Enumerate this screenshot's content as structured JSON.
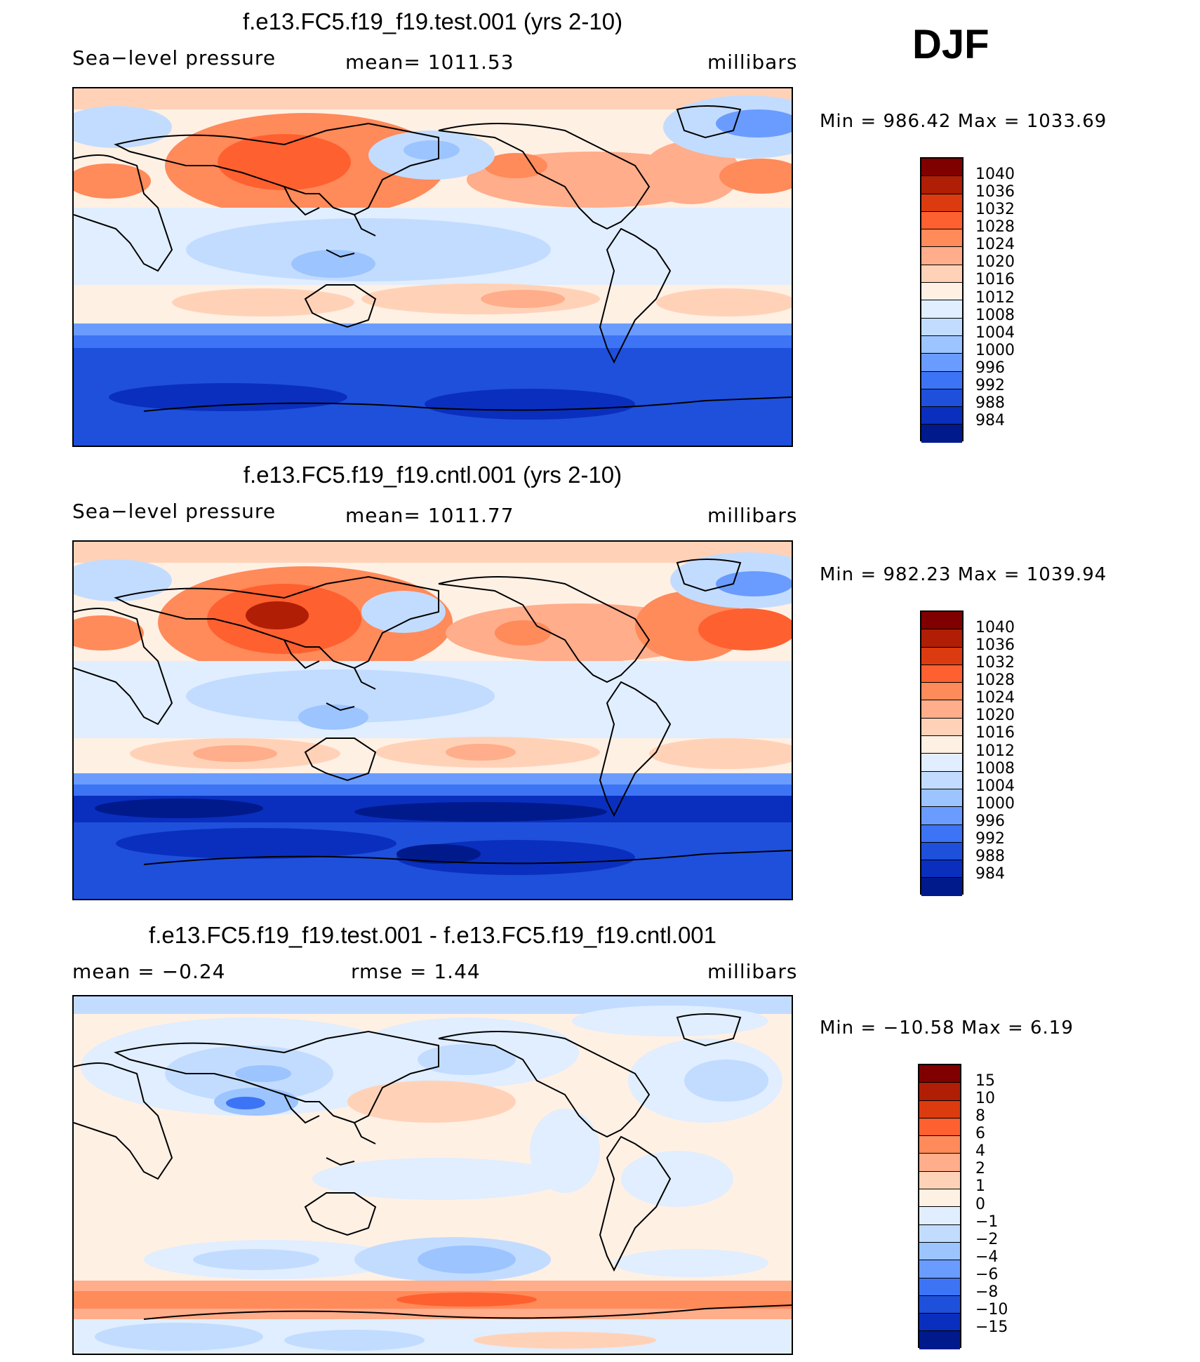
{
  "season": "DJF",
  "panels": [
    {
      "title": "f.e13.FC5.f19_f19.test.001 (yrs 2-10)",
      "left": "Sea−level pressure",
      "center": "mean=  1011.53",
      "right": "millibars",
      "minmax": "Min  =  986.42  Max  =  1033.69"
    },
    {
      "title": "f.e13.FC5.f19_f19.cntl.001 (yrs 2-10)",
      "left": "Sea−level pressure",
      "center": "mean=  1011.77",
      "right": "millibars",
      "minmax": "Min  =  982.23  Max  =  1039.94"
    },
    {
      "title": "f.e13.FC5.f19_f19.test.001 - f.e13.FC5.f19_f19.cntl.001",
      "left": "mean  =    −0.24",
      "center": "rmse  =     1.44",
      "right": "millibars",
      "minmax": "Min  =  −10.58  Max  =      6.19"
    }
  ],
  "colorbars": {
    "slp_colors": [
      "#800000",
      "#b01e05",
      "#dc3a0f",
      "#ff6030",
      "#ff8a5a",
      "#ffad8a",
      "#ffd2b8",
      "#fff0e4",
      "#e0eeff",
      "#c2dcff",
      "#9cc4ff",
      "#6a9cff",
      "#3c74f5",
      "#1e50dc",
      "#0a2fbe",
      "#001a8c"
    ],
    "slp_labels": [
      "1040",
      "1036",
      "1032",
      "1028",
      "1024",
      "1020",
      "1016",
      "1012",
      "1008",
      "1004",
      "1000",
      "996",
      "992",
      "988",
      "984"
    ],
    "diff_colors": [
      "#800000",
      "#b01e05",
      "#dc3a0f",
      "#ff6030",
      "#ff8a5a",
      "#ffad8a",
      "#ffd2b8",
      "#fff0e4",
      "#e0eeff",
      "#c2dcff",
      "#9cc4ff",
      "#6a9cff",
      "#3c74f5",
      "#1e50dc",
      "#0a2fbe",
      "#001a8c"
    ],
    "diff_labels": [
      "15",
      "10",
      "8",
      "6",
      "4",
      "2",
      "1",
      "0",
      "−1",
      "−2",
      "−4",
      "−6",
      "−8",
      "−10",
      "−15"
    ]
  }
}
